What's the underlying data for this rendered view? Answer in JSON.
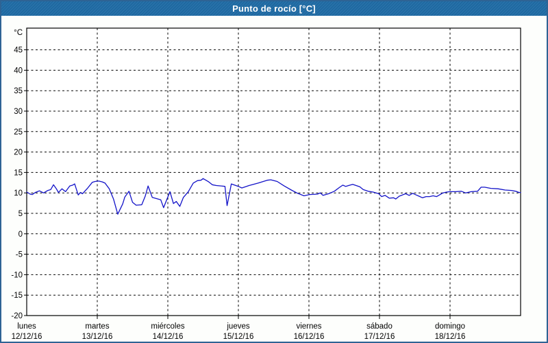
{
  "title": "Punto de rocío [°C]",
  "colors": {
    "frame_border": "#2e6394",
    "titlebar_bg": "#1e6ba5",
    "titlebar_text": "#ffffff",
    "plot_bg": "#ffffff",
    "grid": "#000000",
    "axis": "#000000",
    "line": "#1212c8",
    "label_text": "#000000"
  },
  "chart_data": {
    "type": "line",
    "title": "Punto de rocío [°C]",
    "unit_label": "°C",
    "grid": "dashed",
    "legend": "none",
    "ylim": [
      -20,
      50.3
    ],
    "yticks": [
      45,
      40,
      35,
      30,
      25,
      20,
      15,
      10,
      5,
      0,
      -5,
      -10,
      -15,
      -20
    ],
    "x_axis": {
      "span_days": 7,
      "days": [
        {
          "name": "lunes",
          "date": "12/12/16"
        },
        {
          "name": "martes",
          "date": "13/12/16"
        },
        {
          "name": "miércoles",
          "date": "14/12/16"
        },
        {
          "name": "jueves",
          "date": "15/12/16"
        },
        {
          "name": "viernes",
          "date": "16/12/16"
        },
        {
          "name": "sábado",
          "date": "17/12/16"
        },
        {
          "name": "domingo",
          "date": "18/12/16"
        }
      ]
    },
    "series": [
      {
        "name": "Punto de rocío",
        "color": "#1212c8",
        "points": [
          [
            0.0,
            10.2
          ],
          [
            0.05,
            9.7
          ],
          [
            0.08,
            9.6
          ],
          [
            0.12,
            10.1
          ],
          [
            0.18,
            10.5
          ],
          [
            0.24,
            10.0
          ],
          [
            0.3,
            10.6
          ],
          [
            0.34,
            10.8
          ],
          [
            0.38,
            12.0
          ],
          [
            0.42,
            11.0
          ],
          [
            0.45,
            10.1
          ],
          [
            0.5,
            11.0
          ],
          [
            0.55,
            10.3
          ],
          [
            0.61,
            11.7
          ],
          [
            0.65,
            11.9
          ],
          [
            0.68,
            12.2
          ],
          [
            0.73,
            9.5
          ],
          [
            0.76,
            10.1
          ],
          [
            0.79,
            9.8
          ],
          [
            0.86,
            11.1
          ],
          [
            0.93,
            12.6
          ],
          [
            0.97,
            12.8
          ],
          [
            1.02,
            12.9
          ],
          [
            1.07,
            12.7
          ],
          [
            1.11,
            12.4
          ],
          [
            1.17,
            11.0
          ],
          [
            1.23,
            8.5
          ],
          [
            1.29,
            4.8
          ],
          [
            1.36,
            7.3
          ],
          [
            1.39,
            9.0
          ],
          [
            1.45,
            10.4
          ],
          [
            1.5,
            7.7
          ],
          [
            1.55,
            7.0
          ],
          [
            1.63,
            7.1
          ],
          [
            1.68,
            9.2
          ],
          [
            1.72,
            11.7
          ],
          [
            1.78,
            8.9
          ],
          [
            1.84,
            8.6
          ],
          [
            1.9,
            8.3
          ],
          [
            1.94,
            6.4
          ],
          [
            2.03,
            10.3
          ],
          [
            2.08,
            7.4
          ],
          [
            2.12,
            7.9
          ],
          [
            2.17,
            6.7
          ],
          [
            2.22,
            8.9
          ],
          [
            2.29,
            10.3
          ],
          [
            2.36,
            12.4
          ],
          [
            2.42,
            13.0
          ],
          [
            2.47,
            13.1
          ],
          [
            2.5,
            13.5
          ],
          [
            2.58,
            12.7
          ],
          [
            2.63,
            12.0
          ],
          [
            2.69,
            11.8
          ],
          [
            2.76,
            11.7
          ],
          [
            2.81,
            11.6
          ],
          [
            2.84,
            6.9
          ],
          [
            2.9,
            12.2
          ],
          [
            3.0,
            11.6
          ],
          [
            3.05,
            11.2
          ],
          [
            3.15,
            11.8
          ],
          [
            3.28,
            12.4
          ],
          [
            3.41,
            13.1
          ],
          [
            3.46,
            13.2
          ],
          [
            3.55,
            12.8
          ],
          [
            3.65,
            11.7
          ],
          [
            3.75,
            10.7
          ],
          [
            3.84,
            9.9
          ],
          [
            3.93,
            9.3
          ],
          [
            4.01,
            9.6
          ],
          [
            4.12,
            9.7
          ],
          [
            4.16,
            10.0
          ],
          [
            4.2,
            9.4
          ],
          [
            4.28,
            9.8
          ],
          [
            4.36,
            10.4
          ],
          [
            4.43,
            11.3
          ],
          [
            4.48,
            11.9
          ],
          [
            4.52,
            11.6
          ],
          [
            4.62,
            12.1
          ],
          [
            4.72,
            11.5
          ],
          [
            4.77,
            10.8
          ],
          [
            4.84,
            10.4
          ],
          [
            4.91,
            10.2
          ],
          [
            4.99,
            9.8
          ],
          [
            5.03,
            9.1
          ],
          [
            5.08,
            9.4
          ],
          [
            5.14,
            8.7
          ],
          [
            5.2,
            8.8
          ],
          [
            5.23,
            8.5
          ],
          [
            5.28,
            9.2
          ],
          [
            5.37,
            9.8
          ],
          [
            5.42,
            9.4
          ],
          [
            5.47,
            9.9
          ],
          [
            5.52,
            9.5
          ],
          [
            5.56,
            9.2
          ],
          [
            5.61,
            8.8
          ],
          [
            5.66,
            9.1
          ],
          [
            5.71,
            9.1
          ],
          [
            5.76,
            9.3
          ],
          [
            5.81,
            9.1
          ],
          [
            5.85,
            9.5
          ],
          [
            5.9,
            10.0
          ],
          [
            5.95,
            10.2
          ],
          [
            6.0,
            10.3
          ],
          [
            6.08,
            10.3
          ],
          [
            6.16,
            10.4
          ],
          [
            6.22,
            10.0
          ],
          [
            6.3,
            10.3
          ],
          [
            6.39,
            10.4
          ],
          [
            6.44,
            11.4
          ],
          [
            6.49,
            11.4
          ],
          [
            6.58,
            11.1
          ],
          [
            6.68,
            11.0
          ],
          [
            6.78,
            10.7
          ],
          [
            6.87,
            10.6
          ],
          [
            6.93,
            10.4
          ],
          [
            6.98,
            10.1
          ],
          [
            7.0,
            10.1
          ]
        ]
      }
    ]
  }
}
